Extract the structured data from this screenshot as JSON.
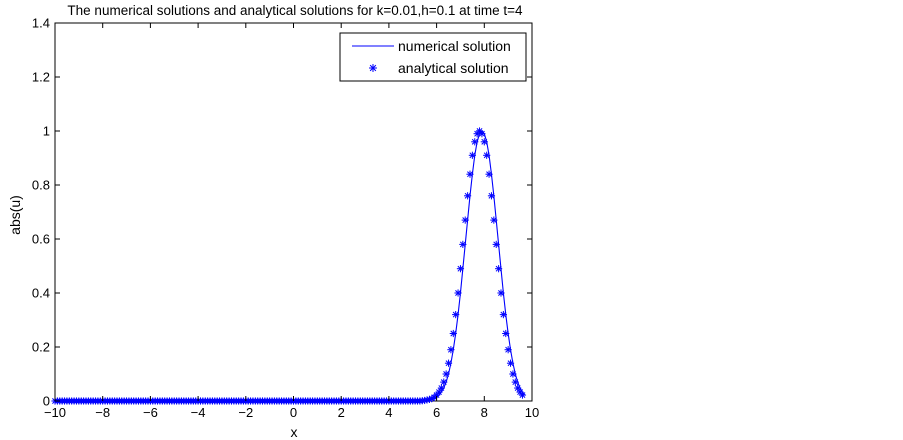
{
  "chart_data": {
    "type": "line",
    "title": "The numerical solutions and analytical solutions for k=0.01,h=0.1 at time t=4",
    "xlabel": "x",
    "ylabel": "abs(u)",
    "xlim": [
      -10,
      10
    ],
    "ylim": [
      0,
      1.4
    ],
    "xticks": [
      -10,
      -8,
      -6,
      -4,
      -2,
      0,
      2,
      4,
      6,
      8,
      10
    ],
    "xtick_labels": [
      "−10",
      "−8",
      "−6",
      "−4",
      "−2",
      "0",
      "2",
      "4",
      "6",
      "8",
      "10"
    ],
    "yticks": [
      0,
      0.2,
      0.4,
      0.6,
      0.8,
      1,
      1.2,
      1.4
    ],
    "ytick_labels": [
      "0",
      "0.2",
      "0.4",
      "0.6",
      "0.8",
      "1",
      "1.2",
      "1.4"
    ],
    "grid": false,
    "legend_position": "top-right",
    "colors": {
      "series": "#0000ff",
      "axes": "#000000",
      "background": "#ffffff"
    },
    "series": [
      {
        "name": "numerical solution",
        "style": "line",
        "x_range": [
          -10,
          10
        ],
        "x_step": 0.1,
        "values": [
          0.0,
          0.0,
          0.0,
          0.0,
          0.0,
          0.0,
          0.0,
          0.0,
          0.0,
          0.0,
          0.0,
          0.0,
          0.0,
          0.0,
          0.0,
          0.0,
          0.0,
          0.0,
          0.0,
          0.0,
          0.0,
          0.0,
          0.0,
          0.0,
          0.0,
          0.0,
          0.0,
          0.0,
          0.0,
          0.0,
          0.0,
          0.0,
          0.0,
          0.0,
          0.0,
          0.0,
          0.0,
          0.0,
          0.0,
          0.0,
          0.0,
          0.0,
          0.0,
          0.0,
          0.0,
          0.0,
          0.0,
          0.0,
          0.0,
          0.0,
          0.0,
          0.0,
          0.0,
          0.0,
          0.0,
          0.0,
          0.0,
          0.0,
          0.0,
          0.0,
          0.0,
          0.0,
          0.0,
          0.0,
          0.0,
          0.0,
          0.0,
          0.0,
          0.0,
          0.0,
          0.0,
          0.0,
          0.0,
          0.0,
          0.0,
          0.0,
          0.0,
          0.0,
          0.0,
          0.0,
          0.0,
          0.0,
          0.0,
          0.0,
          0.0,
          0.0,
          0.0,
          0.0,
          0.0,
          0.0,
          0.0,
          0.0,
          0.0,
          0.0,
          0.0,
          0.0,
          0.0,
          0.0,
          0.0,
          0.0,
          0.0,
          0.0,
          0.0,
          0.0,
          0.0,
          0.0,
          0.0,
          0.0,
          0.0,
          0.0,
          0.0,
          0.0,
          0.0,
          0.0,
          0.0,
          0.0,
          0.0,
          0.0,
          0.0,
          0.0,
          0.0,
          0.0,
          0.0,
          0.0,
          0.0,
          0.0,
          0.0,
          0.0,
          0.0,
          0.0,
          0.0,
          0.0,
          0.0,
          0.0,
          0.0,
          0.0,
          0.0,
          0.0,
          0.0,
          0.0,
          0.0,
          0.0,
          0.0,
          0.0,
          0.0,
          0.0,
          0.0,
          0.0,
          0.0,
          0.0,
          0.0,
          0.0,
          0.0,
          0.0,
          0.0,
          0.001,
          0.002,
          0.004,
          0.006,
          0.009,
          0.014,
          0.022,
          0.033,
          0.048,
          0.07,
          0.1,
          0.14,
          0.19,
          0.25,
          0.32,
          0.4,
          0.49,
          0.58,
          0.67,
          0.76,
          0.84,
          0.91,
          0.96,
          0.99,
          1.0,
          0.99,
          0.96,
          0.91,
          0.84,
          0.76,
          0.67,
          0.58,
          0.49,
          0.4,
          0.32,
          0.25,
          0.19,
          0.14,
          0.1,
          0.07,
          0.048,
          0.033,
          0.022
        ]
      },
      {
        "name": "analytical solution",
        "style": "markers",
        "marker": "*",
        "x_range": [
          -10,
          10
        ],
        "x_step": 0.1,
        "values": [
          0.0,
          0.0,
          0.0,
          0.0,
          0.0,
          0.0,
          0.0,
          0.0,
          0.0,
          0.0,
          0.0,
          0.0,
          0.0,
          0.0,
          0.0,
          0.0,
          0.0,
          0.0,
          0.0,
          0.0,
          0.0,
          0.0,
          0.0,
          0.0,
          0.0,
          0.0,
          0.0,
          0.0,
          0.0,
          0.0,
          0.0,
          0.0,
          0.0,
          0.0,
          0.0,
          0.0,
          0.0,
          0.0,
          0.0,
          0.0,
          0.0,
          0.0,
          0.0,
          0.0,
          0.0,
          0.0,
          0.0,
          0.0,
          0.0,
          0.0,
          0.0,
          0.0,
          0.0,
          0.0,
          0.0,
          0.0,
          0.0,
          0.0,
          0.0,
          0.0,
          0.0,
          0.0,
          0.0,
          0.0,
          0.0,
          0.0,
          0.0,
          0.0,
          0.0,
          0.0,
          0.0,
          0.0,
          0.0,
          0.0,
          0.0,
          0.0,
          0.0,
          0.0,
          0.0,
          0.0,
          0.0,
          0.0,
          0.0,
          0.0,
          0.0,
          0.0,
          0.0,
          0.0,
          0.0,
          0.0,
          0.0,
          0.0,
          0.0,
          0.0,
          0.0,
          0.0,
          0.0,
          0.0,
          0.0,
          0.0,
          0.0,
          0.0,
          0.0,
          0.0,
          0.0,
          0.0,
          0.0,
          0.0,
          0.0,
          0.0,
          0.0,
          0.0,
          0.0,
          0.0,
          0.0,
          0.0,
          0.0,
          0.0,
          0.0,
          0.0,
          0.0,
          0.0,
          0.0,
          0.0,
          0.0,
          0.0,
          0.0,
          0.0,
          0.0,
          0.0,
          0.0,
          0.0,
          0.0,
          0.0,
          0.0,
          0.0,
          0.0,
          0.0,
          0.0,
          0.0,
          0.0,
          0.0,
          0.0,
          0.0,
          0.0,
          0.0,
          0.0,
          0.0,
          0.0,
          0.0,
          0.0,
          0.0,
          0.0,
          0.0,
          0.001,
          0.002,
          0.004,
          0.006,
          0.009,
          0.014,
          0.022,
          0.033,
          0.048,
          0.07,
          0.1,
          0.14,
          0.19,
          0.25,
          0.32,
          0.4,
          0.49,
          0.58,
          0.67,
          0.76,
          0.84,
          0.91,
          0.96,
          0.99,
          1.0,
          0.99,
          0.96,
          0.91,
          0.84,
          0.76,
          0.67,
          0.58,
          0.49,
          0.4,
          0.32,
          0.25,
          0.19,
          0.14,
          0.1,
          0.07,
          0.048,
          0.033,
          0.022
        ]
      }
    ]
  }
}
